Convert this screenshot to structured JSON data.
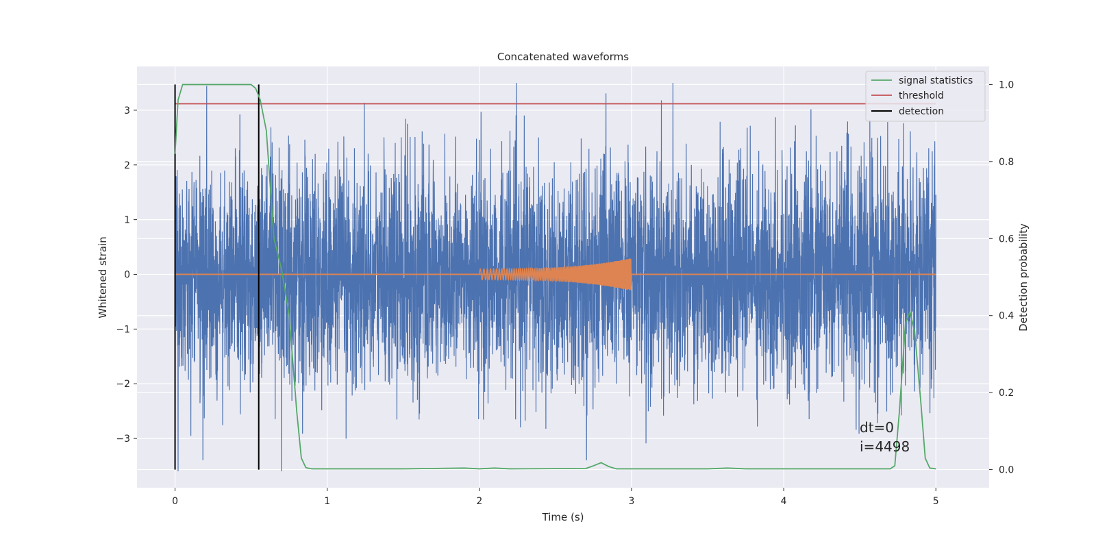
{
  "chart_data": {
    "type": "line",
    "title": "Concatenated waveforms",
    "xlabel": "Time (s)",
    "ylabel": "Whitened strain",
    "ylabel_right": "Detection probability",
    "xlim": [
      -0.25,
      5.35
    ],
    "ylim_left": [
      -3.9,
      3.8
    ],
    "ylim_right": [
      -0.047,
      1.047
    ],
    "xticks": [
      0,
      1,
      2,
      3,
      4,
      5
    ],
    "yticks_left": [
      -3,
      -2,
      -1,
      0,
      1,
      2,
      3
    ],
    "yticks_right": [
      0.0,
      0.2,
      0.4,
      0.6,
      0.8,
      1.0
    ],
    "grid": true,
    "legend_position": "top-right",
    "legend": [
      "signal statistics",
      "threshold",
      "detection"
    ],
    "colors": {
      "strain": "#4c72b0",
      "waveform": "#dd8452",
      "signal_statistics": "#55a868",
      "threshold": "#c44e52",
      "detection": "#000000",
      "background": "#eaeaf2"
    },
    "series": [
      {
        "role": "whitened strain",
        "axis": "left",
        "x_range": [
          0,
          5
        ],
        "approx_y_range": [
          -3.6,
          3.5
        ],
        "typical_amplitude": 1.0
      },
      {
        "role": "injected waveform",
        "axis": "left",
        "x_range": [
          0,
          5
        ],
        "chirp_x_range": [
          2,
          3
        ],
        "chirp_amplitude_start": 0.1,
        "chirp_amplitude_end": 0.3
      },
      {
        "name": "signal statistics",
        "axis": "right",
        "x": [
          0,
          0.02,
          0.05,
          0.1,
          0.3,
          0.5,
          0.53,
          0.56,
          0.6,
          0.65,
          0.7,
          0.75,
          0.8,
          0.83,
          0.86,
          0.9,
          1.5,
          1.9,
          2.0,
          2.1,
          2.2,
          2.7,
          2.75,
          2.8,
          2.85,
          2.9,
          3.5,
          3.63,
          3.75,
          4.7,
          4.73,
          4.76,
          4.8,
          4.83,
          4.86,
          4.9,
          4.93,
          4.96,
          5.0
        ],
        "y": [
          0.82,
          0.96,
          1.0,
          1.0,
          1.0,
          1.0,
          0.99,
          0.96,
          0.88,
          0.6,
          0.52,
          0.4,
          0.15,
          0.03,
          0.005,
          0.002,
          0.002,
          0.004,
          0.002,
          0.004,
          0.002,
          0.003,
          0.01,
          0.018,
          0.008,
          0.002,
          0.002,
          0.004,
          0.002,
          0.002,
          0.01,
          0.15,
          0.38,
          0.41,
          0.36,
          0.18,
          0.03,
          0.004,
          0.002
        ]
      },
      {
        "name": "threshold",
        "axis": "right",
        "x": [
          0,
          5
        ],
        "y": [
          0.95,
          0.95
        ]
      },
      {
        "name": "detection",
        "axis": "right",
        "type": "vlines",
        "x": [
          0.0,
          0.55
        ],
        "y_range": [
          0.0,
          1.0
        ]
      }
    ],
    "annotations": [
      "dt=0",
      "i=4498"
    ]
  }
}
